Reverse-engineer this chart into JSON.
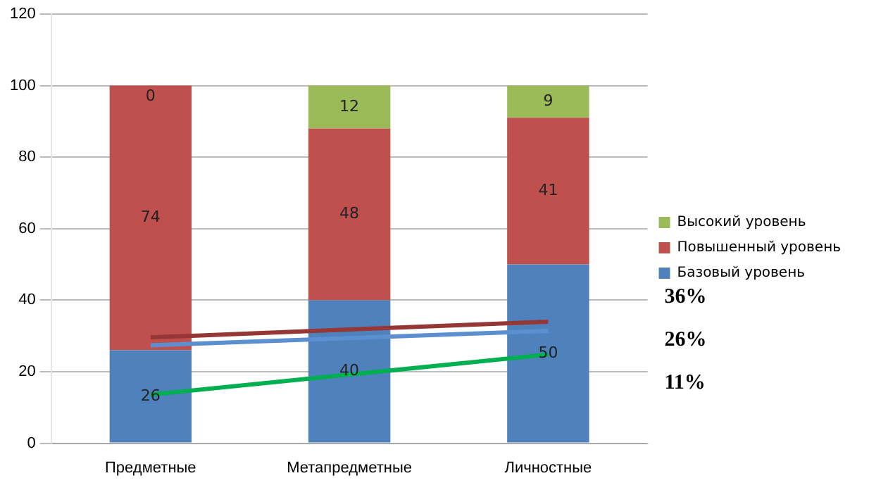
{
  "chart_data": {
    "type": "bar",
    "stacked": true,
    "categories": [
      "Предметные",
      "Метапредметные",
      "Личностные"
    ],
    "series": [
      {
        "name": "Базовый уровень",
        "color": "#4f81bd",
        "values": [
          26,
          40,
          50
        ],
        "value_labels": [
          "26",
          "40",
          "50"
        ]
      },
      {
        "name": "Повышенный уровень",
        "color": "#c0504d",
        "values": [
          74,
          48,
          41
        ],
        "value_labels": [
          "74",
          "48",
          "41"
        ]
      },
      {
        "name": "Высокий уровень",
        "color": "#9bbb59",
        "values": [
          0,
          12,
          9
        ],
        "value_labels": [
          "0",
          "12",
          "9"
        ]
      },
      {
        "type": "line",
        "color": "#953735",
        "x": [
          "Предметные",
          "Метапредметные",
          "Личностные"
        ],
        "values": [
          29.6,
          31.8,
          34
        ]
      },
      {
        "type": "line",
        "color": "#5b8fd0",
        "x": [
          "Предметные",
          "Метапредметные",
          "Личностные"
        ],
        "values": [
          27.4,
          29.4,
          31.4
        ]
      },
      {
        "type": "line",
        "color": "#00b050",
        "x": [
          "Предметные",
          "Метапредметные",
          "Личностные"
        ],
        "values": [
          13.6,
          19.2,
          24.8
        ]
      }
    ],
    "ylim": [
      0,
      120
    ],
    "yticks": [
      0,
      20,
      40,
      60,
      80,
      100,
      120
    ],
    "grid": "y",
    "legend": "right",
    "annotations": [
      "36%",
      "26%",
      "11%"
    ]
  }
}
